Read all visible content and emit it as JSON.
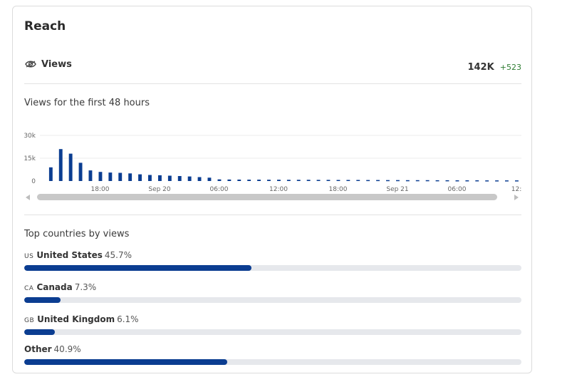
{
  "card": {
    "title": "Reach"
  },
  "views": {
    "icon": "eye-icon",
    "label": "Views",
    "total": "142K",
    "delta": "+523",
    "delta_color": "#2e7d32"
  },
  "chart_section": {
    "label": "Views for the first 48 hours"
  },
  "chart_data": {
    "type": "bar",
    "title": "",
    "xlabel": "",
    "ylabel": "",
    "ylim": [
      0,
      30000
    ],
    "y_ticks": [
      "0",
      "15k",
      "30k"
    ],
    "x_tick_labels": [
      "18:00",
      "Sep 20",
      "06:00",
      "12:00",
      "18:00",
      "Sep 21",
      "06:00",
      "12:"
    ],
    "x_tick_indices": [
      5,
      11,
      17,
      23,
      29,
      35,
      41,
      47
    ],
    "bar_color": "#0b3d91",
    "values": [
      9000,
      21000,
      18000,
      12000,
      7000,
      6000,
      5600,
      5400,
      5000,
      4400,
      4000,
      3800,
      3500,
      3300,
      3000,
      2600,
      2200,
      1100,
      1000,
      950,
      900,
      880,
      860,
      840,
      820,
      800,
      780,
      760,
      740,
      720,
      700,
      680,
      660,
      640,
      620,
      600,
      580,
      560,
      540,
      520,
      500,
      480,
      460,
      450,
      440,
      430,
      420,
      410
    ],
    "grid": true
  },
  "countries_section": {
    "label": "Top countries by views",
    "items": [
      {
        "code": "US",
        "name": "United States",
        "pct": "45.7%",
        "value": 45.7
      },
      {
        "code": "CA",
        "name": "Canada",
        "pct": "7.3%",
        "value": 7.3
      },
      {
        "code": "GB",
        "name": "United Kingdom",
        "pct": "6.1%",
        "value": 6.1
      },
      {
        "code": "",
        "name": "Other",
        "pct": "40.9%",
        "value": 40.9
      }
    ],
    "bar_color": "#0b3d91"
  }
}
